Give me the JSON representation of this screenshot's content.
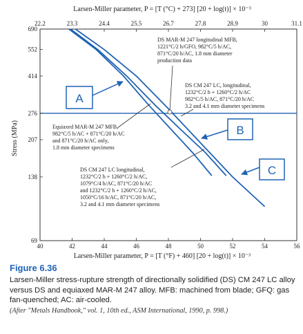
{
  "chart_data": {
    "type": "line",
    "title": "",
    "xlabel_top": "Larsen-Miller parameter, P = [T (°C) + 273] [20 + log(t)] × 10⁻³",
    "xlabel_bottom": "Larsen-Miller parameter, P = [T (°F) + 460] [20 + log(t)] × 10⁻³",
    "ylabel": "Stress (MPa)",
    "ticks_top": [
      "22.2",
      "23.3",
      "24.4",
      "25.5",
      "26.7",
      "27.8",
      "28.9",
      "30",
      "31.1"
    ],
    "ticks_bottom": [
      "40",
      "42",
      "44",
      "46",
      "48",
      "50",
      "52",
      "54",
      "56"
    ],
    "ticks_y": [
      "690",
      "552",
      "414",
      "276",
      "207",
      "138",
      "69"
    ],
    "xlim": [
      40,
      56
    ],
    "ylim": [
      69,
      690
    ],
    "y_scale": "log",
    "reference_line_stress": 276,
    "series": [
      {
        "name": "A",
        "color": "#1f63b5",
        "x": [
          41.8,
          43.5,
          45.2,
          46.8,
          48.2,
          49.5,
          50.7
        ],
        "y": [
          690,
          552,
          414,
          300,
          230,
          180,
          140
        ]
      },
      {
        "name": "B",
        "color": "#1f63b5",
        "x": [
          41.9,
          43.6,
          45.4,
          47.2,
          48.8,
          50.3,
          51.6
        ],
        "y": [
          690,
          552,
          414,
          300,
          230,
          180,
          140
        ]
      },
      {
        "name": "C",
        "color": "#1f63b5",
        "x": [
          42.2,
          44.0,
          46.0,
          48.0,
          50.0,
          52.0,
          54.0
        ],
        "y": [
          690,
          552,
          414,
          290,
          200,
          138,
          100
        ]
      }
    ],
    "callouts": [
      "A",
      "B",
      "C"
    ]
  },
  "annotations": {
    "mfb_lines": [
      "DS MAR-M 247 longitudinal MFB,",
      "1221°C/2 h/GFO, 982°C/5 h/AC,",
      "871°C/20 h/AC, 1.8 mm diameter",
      "production data"
    ],
    "lc_lines": [
      "DS CM 247 LC, longitudinal,",
      "1232°C/2 h + 1260°C/2 h/AC",
      "982°C/5 h/AC, 871°C/20 h/AC",
      "3.2 and 4.1 mm diameter specimens"
    ],
    "equiaxed_lines": [
      "Equiaxed MAR-M 247 MFB,",
      "982°C/5 h/AC + 871°C/20 h/AC",
      "and 871°C/20 h/AC only,",
      "1.8 mm diameter specimens"
    ],
    "lc2_lines": [
      "DS CM 247 LC longitudinal,",
      "1232°C/2 h + 1260°C/2 h/AC,",
      "1079°C/4 h/AC, 871°C/20 h/AC",
      "and 1232°C/2 h + 1260°C/2 h/AC,",
      "1050°C/16 h/AC, 871°C/20 h/AC,",
      "3.2 and 4.1 mm diameter specimens"
    ]
  },
  "caption": {
    "label": "Figure 6.36",
    "text": "Larsen-Miller stress-rupture strength of directionally solidified (DS) CM 247 LC alloy versus DS and equiaxed MAR-M 247 alloy. MFB: machined from blade; GFQ: gas fan-quenched; AC: air-cooled.",
    "source": "(After \"Metals Handbook,\" vol. 1, 10th ed., ASM International, 1990, p. 998.)"
  }
}
